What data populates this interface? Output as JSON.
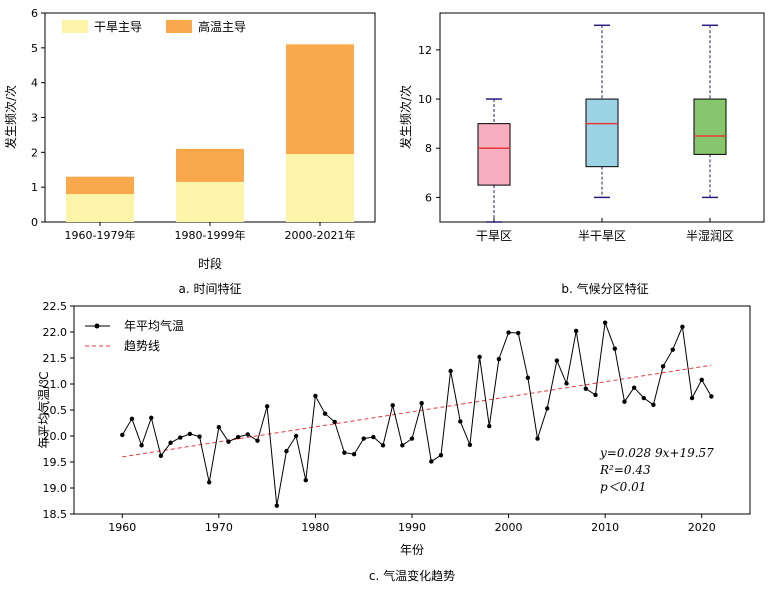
{
  "captions": {
    "a": "a. 时间特征",
    "b": "b. 气候分区特征",
    "c": "c. 气温变化趋势"
  },
  "colors": {
    "drought": "#fcf5a9",
    "heat": "#f9a84b",
    "box_arid": "#f7aebe",
    "box_semiarid": "#9cd3e5",
    "box_semihumid": "#88c56f",
    "median": "#e8383c",
    "whisker": "#2e1a7a",
    "line": "#000000",
    "trend": "#e8383c"
  },
  "chart_data": [
    {
      "type": "bar",
      "stacked": true,
      "title": "",
      "xlabel": "时段",
      "ylabel": "发生频次/次",
      "ylim": [
        0,
        6
      ],
      "yticks": [
        0,
        1,
        2,
        3,
        4,
        5,
        6
      ],
      "categories": [
        "1960-1979年",
        "1980-1999年",
        "2000-2021年"
      ],
      "legend_position": "top-left",
      "series": [
        {
          "name": "干旱主导",
          "values": [
            0.8,
            1.15,
            1.95
          ]
        },
        {
          "name": "高温主导",
          "values": [
            0.5,
            0.95,
            3.15
          ]
        }
      ]
    },
    {
      "type": "box",
      "title": "",
      "xlabel": "",
      "ylabel": "发生频次/次",
      "ylim": [
        5,
        13.5
      ],
      "yticks": [
        6,
        8,
        10,
        12
      ],
      "categories": [
        "干旱区",
        "半干旱区",
        "半湿润区"
      ],
      "boxes": [
        {
          "min": 5,
          "q1": 6.5,
          "median": 8,
          "q3": 9,
          "max": 10
        },
        {
          "min": 6,
          "q1": 7.25,
          "median": 9,
          "q3": 10,
          "max": 13
        },
        {
          "min": 6,
          "q1": 7.75,
          "median": 8.5,
          "q3": 10,
          "max": 13
        }
      ]
    },
    {
      "type": "line",
      "title": "",
      "xlabel": "年份",
      "ylabel": "年平均气温/℃",
      "xlim": [
        1955,
        2025
      ],
      "ylim": [
        18.5,
        22.5
      ],
      "xticks": [
        1960,
        1970,
        1980,
        1990,
        2000,
        2010,
        2020
      ],
      "yticks": [
        18.5,
        19.0,
        19.5,
        20.0,
        20.5,
        21.0,
        21.5,
        22.0,
        22.5
      ],
      "yticks_labels": [
        "18.5",
        "19.0",
        "19.5",
        "20.0",
        "20.5",
        "21.0",
        "21.5",
        "22.0",
        "22.5"
      ],
      "legend_position": "top-left",
      "series": [
        {
          "name": "年平均气温",
          "x": [
            1960,
            1961,
            1962,
            1963,
            1964,
            1965,
            1966,
            1967,
            1968,
            1969,
            1970,
            1971,
            1972,
            1973,
            1974,
            1975,
            1976,
            1977,
            1978,
            1979,
            1980,
            1981,
            1982,
            1983,
            1984,
            1985,
            1986,
            1987,
            1988,
            1989,
            1990,
            1991,
            1992,
            1993,
            1994,
            1995,
            1996,
            1997,
            1998,
            1999,
            2000,
            2001,
            2002,
            2003,
            2004,
            2005,
            2006,
            2007,
            2008,
            2009,
            2010,
            2011,
            2012,
            2013,
            2014,
            2015,
            2016,
            2017,
            2018,
            2019,
            2020,
            2021
          ],
          "y": [
            20.02,
            20.33,
            19.82,
            20.35,
            19.62,
            19.87,
            19.97,
            20.04,
            19.99,
            19.11,
            20.17,
            19.89,
            19.98,
            20.03,
            19.91,
            20.57,
            18.66,
            19.71,
            20.0,
            19.15,
            20.77,
            20.43,
            20.27,
            19.68,
            19.65,
            19.95,
            19.98,
            19.82,
            20.59,
            19.82,
            19.95,
            20.63,
            19.51,
            19.63,
            21.25,
            20.28,
            19.83,
            21.52,
            20.19,
            21.48,
            21.99,
            21.98,
            21.12,
            19.95,
            20.53,
            21.45,
            21.01,
            22.02,
            20.91,
            20.79,
            22.18,
            21.68,
            20.66,
            20.93,
            20.73,
            20.6,
            21.34,
            21.66,
            22.1,
            20.73,
            21.08,
            20.76
          ]
        },
        {
          "name": "趋势线",
          "slope": 0.0289,
          "intercept": 19.57,
          "x_index_start": 1960
        }
      ],
      "annotation": {
        "eq": "y=0.028 9x+19.57",
        "r2": "R²=0.43",
        "p": "p＜0.01"
      }
    }
  ]
}
